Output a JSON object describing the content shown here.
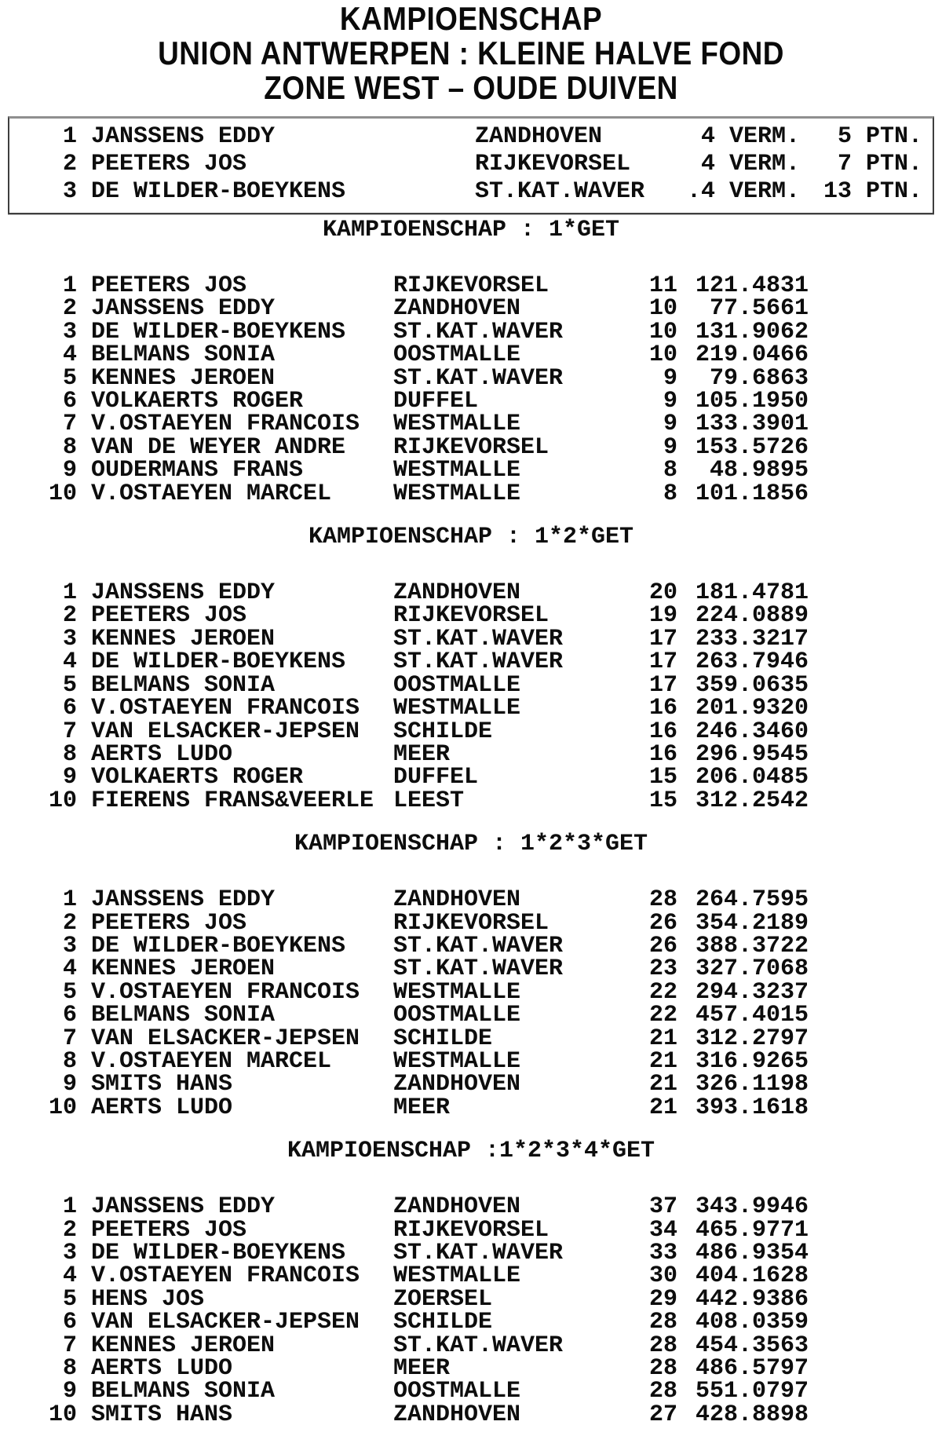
{
  "titles": [
    "KAMPIOENSCHAP",
    "UNION ANTWERPEN : KLEINE HALVE FOND",
    "ZONE WEST – OUDE DUIVEN"
  ],
  "summary_box": {
    "rows": [
      {
        "rank": "1",
        "name": "JANSSENS EDDY",
        "place": "ZANDHOVEN",
        "verm": "4",
        "verm_label": "VERM.",
        "pts": "5",
        "pts_label": "PTN."
      },
      {
        "rank": "2",
        "name": "PEETERS JOS",
        "place": "RIJKEVORSEL",
        "verm": "4",
        "verm_label": "VERM.",
        "pts": "7",
        "pts_label": "PTN."
      },
      {
        "rank": "3",
        "name": "DE WILDER-BOEYKENS",
        "place": "ST.KAT.WAVER",
        "verm": ".4",
        "verm_label": "VERM.",
        "pts": "13",
        "pts_label": "PTN."
      }
    ]
  },
  "sections": [
    {
      "header": "KAMPIOENSCHAP : 1*GET",
      "rows": [
        {
          "rank": "1",
          "name": "PEETERS JOS",
          "place": "RIJKEVORSEL",
          "count": "11",
          "coeff": "121.4831"
        },
        {
          "rank": "2",
          "name": "JANSSENS EDDY",
          "place": "ZANDHOVEN",
          "count": "10",
          "coeff": "77.5661"
        },
        {
          "rank": "3",
          "name": "DE WILDER-BOEYKENS",
          "place": "ST.KAT.WAVER",
          "count": "10",
          "coeff": "131.9062"
        },
        {
          "rank": "4",
          "name": "BELMANS SONIA",
          "place": "OOSTMALLE",
          "count": "10",
          "coeff": "219.0466"
        },
        {
          "rank": "5",
          "name": "KENNES JEROEN",
          "place": "ST.KAT.WAVER",
          "count": "9",
          "coeff": "79.6863"
        },
        {
          "rank": "6",
          "name": "VOLKAERTS ROGER",
          "place": "DUFFEL",
          "count": "9",
          "coeff": "105.1950"
        },
        {
          "rank": "7",
          "name": "V.OSTAEYEN FRANCOIS",
          "place": "WESTMALLE",
          "count": "9",
          "coeff": "133.3901"
        },
        {
          "rank": "8",
          "name": "VAN DE WEYER ANDRE",
          "place": "RIJKEVORSEL",
          "count": "9",
          "coeff": "153.5726"
        },
        {
          "rank": "9",
          "name": "OUDERMANS FRANS",
          "place": "WESTMALLE",
          "count": "8",
          "coeff": "48.9895"
        },
        {
          "rank": "10",
          "name": "V.OSTAEYEN MARCEL",
          "place": "WESTMALLE",
          "count": "8",
          "coeff": "101.1856"
        }
      ]
    },
    {
      "header": "KAMPIOENSCHAP : 1*2*GET",
      "rows": [
        {
          "rank": "1",
          "name": "JANSSENS EDDY",
          "place": "ZANDHOVEN",
          "count": "20",
          "coeff": "181.4781"
        },
        {
          "rank": "2",
          "name": "PEETERS JOS",
          "place": "RIJKEVORSEL",
          "count": "19",
          "coeff": "224.0889"
        },
        {
          "rank": "3",
          "name": "KENNES JEROEN",
          "place": "ST.KAT.WAVER",
          "count": "17",
          "coeff": "233.3217"
        },
        {
          "rank": "4",
          "name": "DE WILDER-BOEYKENS",
          "place": "ST.KAT.WAVER",
          "count": "17",
          "coeff": "263.7946"
        },
        {
          "rank": "5",
          "name": "BELMANS SONIA",
          "place": "OOSTMALLE",
          "count": "17",
          "coeff": "359.0635"
        },
        {
          "rank": "6",
          "name": "V.OSTAEYEN FRANCOIS",
          "place": "WESTMALLE",
          "count": "16",
          "coeff": "201.9320"
        },
        {
          "rank": "7",
          "name": "VAN ELSACKER-JEPSEN",
          "place": "SCHILDE",
          "count": "16",
          "coeff": "246.3460"
        },
        {
          "rank": "8",
          "name": "AERTS LUDO",
          "place": "MEER",
          "count": "16",
          "coeff": "296.9545"
        },
        {
          "rank": "9",
          "name": "VOLKAERTS ROGER",
          "place": "DUFFEL",
          "count": "15",
          "coeff": "206.0485"
        },
        {
          "rank": "10",
          "name": "FIERENS FRANS&VEERLE",
          "place": "LEEST",
          "count": "15",
          "coeff": "312.2542"
        }
      ]
    },
    {
      "header": "KAMPIOENSCHAP : 1*2*3*GET",
      "rows": [
        {
          "rank": "1",
          "name": "JANSSENS EDDY",
          "place": "ZANDHOVEN",
          "count": "28",
          "coeff": "264.7595"
        },
        {
          "rank": "2",
          "name": "PEETERS JOS",
          "place": "RIJKEVORSEL",
          "count": "26",
          "coeff": "354.2189"
        },
        {
          "rank": "3",
          "name": "DE WILDER-BOEYKENS",
          "place": "ST.KAT.WAVER",
          "count": "26",
          "coeff": "388.3722"
        },
        {
          "rank": "4",
          "name": "KENNES JEROEN",
          "place": "ST.KAT.WAVER",
          "count": "23",
          "coeff": "327.7068"
        },
        {
          "rank": "5",
          "name": "V.OSTAEYEN FRANCOIS",
          "place": "WESTMALLE",
          "count": "22",
          "coeff": "294.3237"
        },
        {
          "rank": "6",
          "name": "BELMANS SONIA",
          "place": "OOSTMALLE",
          "count": "22",
          "coeff": "457.4015"
        },
        {
          "rank": "7",
          "name": "VAN ELSACKER-JEPSEN",
          "place": "SCHILDE",
          "count": "21",
          "coeff": "312.2797"
        },
        {
          "rank": "8",
          "name": "V.OSTAEYEN MARCEL",
          "place": "WESTMALLE",
          "count": "21",
          "coeff": "316.9265"
        },
        {
          "rank": "9",
          "name": "SMITS HANS",
          "place": "ZANDHOVEN",
          "count": "21",
          "coeff": "326.1198"
        },
        {
          "rank": "10",
          "name": "AERTS LUDO",
          "place": "MEER",
          "count": "21",
          "coeff": "393.1618"
        }
      ]
    },
    {
      "header": "KAMPIOENSCHAP :1*2*3*4*GET",
      "rows": [
        {
          "rank": "1",
          "name": "JANSSENS EDDY",
          "place": "ZANDHOVEN",
          "count": "37",
          "coeff": "343.9946"
        },
        {
          "rank": "2",
          "name": "PEETERS JOS",
          "place": "RIJKEVORSEL",
          "count": "34",
          "coeff": "465.9771"
        },
        {
          "rank": "3",
          "name": "DE WILDER-BOEYKENS",
          "place": "ST.KAT.WAVER",
          "count": "33",
          "coeff": "486.9354"
        },
        {
          "rank": "4",
          "name": "V.OSTAEYEN FRANCOIS",
          "place": "WESTMALLE",
          "count": "30",
          "coeff": "404.1628"
        },
        {
          "rank": "5",
          "name": "HENS JOS",
          "place": "ZOERSEL",
          "count": "29",
          "coeff": "442.9386"
        },
        {
          "rank": "6",
          "name": "VAN ELSACKER-JEPSEN",
          "place": "SCHILDE",
          "count": "28",
          "coeff": "408.0359"
        },
        {
          "rank": "7",
          "name": "KENNES JEROEN",
          "place": "ST.KAT.WAVER",
          "count": "28",
          "coeff": "454.3563"
        },
        {
          "rank": "8",
          "name": "AERTS LUDO",
          "place": "MEER",
          "count": "28",
          "coeff": "486.5797"
        },
        {
          "rank": "9",
          "name": "BELMANS SONIA",
          "place": "OOSTMALLE",
          "count": "28",
          "coeff": "551.0797"
        },
        {
          "rank": "10",
          "name": "SMITS HANS",
          "place": "ZANDHOVEN",
          "count": "27",
          "coeff": "428.8898"
        }
      ]
    }
  ],
  "colors": {
    "background": "#ffffff",
    "text": "#0d0d0d",
    "box_border": "#3e3e3e"
  }
}
